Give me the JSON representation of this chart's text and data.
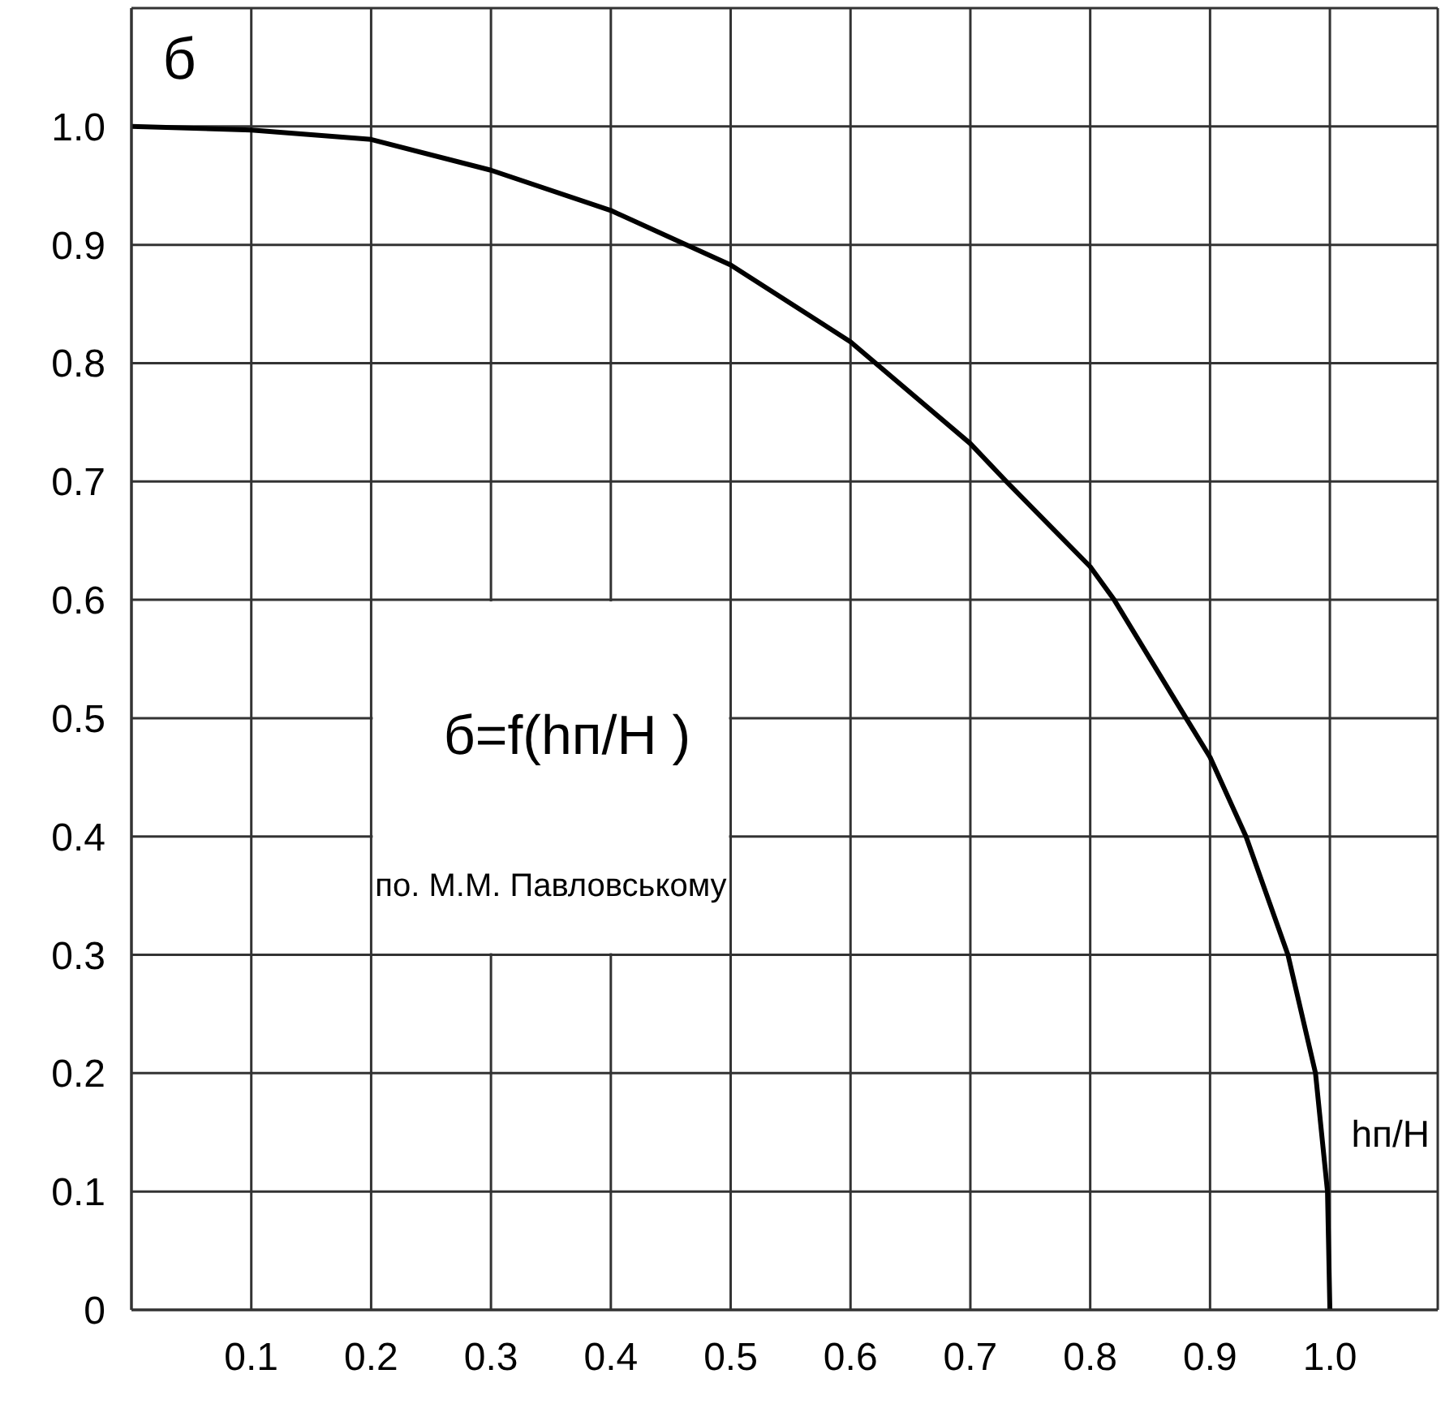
{
  "chart_data": {
    "type": "line",
    "ylabel": "б",
    "xlabel": "hп/H",
    "annotations": [
      "б=f(hп/H )",
      "по. М.М. Павловському"
    ],
    "series": [
      {
        "color": "#000000",
        "x": [
          0,
          0.1,
          0.2,
          0.3,
          0.4,
          0.5,
          0.6,
          0.7,
          0.73,
          0.8,
          0.82,
          0.88,
          0.9,
          0.93,
          0.965,
          0.988,
          0.998,
          1.0
        ],
        "values": [
          1.0,
          0.997,
          0.989,
          0.963,
          0.929,
          0.883,
          0.818,
          0.732,
          0.7,
          0.628,
          0.6,
          0.5,
          0.467,
          0.4,
          0.3,
          0.2,
          0.1,
          0
        ]
      }
    ],
    "xlim": [
      0,
      1.09
    ],
    "ylim": [
      0,
      1.1
    ],
    "xticks": [
      {
        "value": 0,
        "label": null
      },
      0.1,
      0.2,
      0.3,
      0.4,
      0.5,
      0.6,
      0.7,
      0.8,
      0.9,
      {
        "value": 1.0,
        "label": "1.0"
      }
    ],
    "yticks": [
      0,
      0.1,
      0.2,
      0.3,
      0.4,
      0.5,
      0.6,
      0.7,
      0.8,
      0.9,
      {
        "value": 1.0,
        "label": "1.0"
      }
    ],
    "grid": true,
    "marker": "none",
    "line_style": "solid"
  }
}
